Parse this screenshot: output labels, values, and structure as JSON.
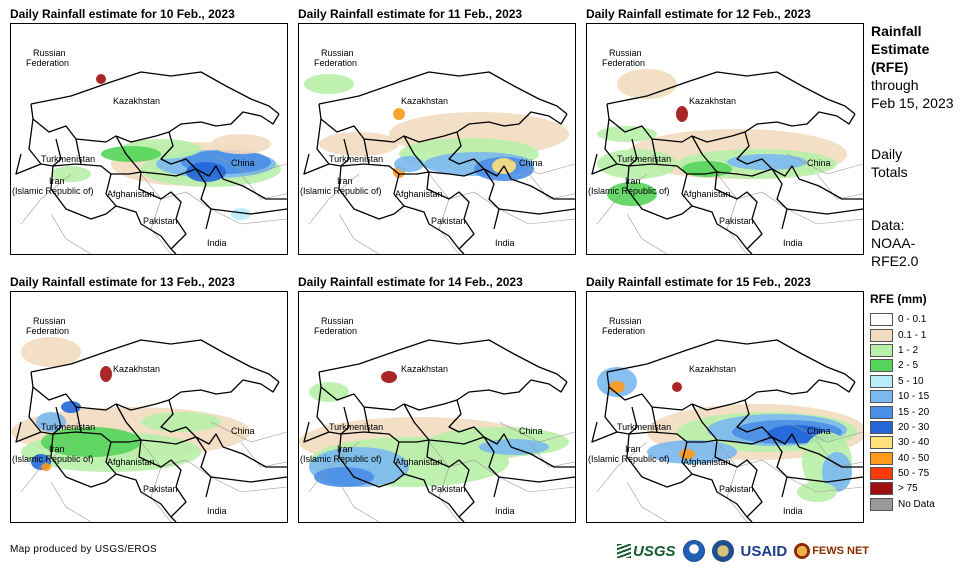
{
  "panels": [
    {
      "title": "Daily Rainfall estimate for 10 Feb., 2023"
    },
    {
      "title": "Daily Rainfall estimate for 11 Feb., 2023"
    },
    {
      "title": "Daily Rainfall estimate for 12 Feb., 2023"
    },
    {
      "title": "Daily Rainfall estimate for 13 Feb., 2023"
    },
    {
      "title": "Daily Rainfall estimate for 14 Feb., 2023"
    },
    {
      "title": "Daily Rainfall estimate for 15 Feb., 2023"
    }
  ],
  "country_labels": {
    "russia_line1": "Russian",
    "russia_line2": "Federation",
    "kazakhstan": "Kazakhstan",
    "turkmenistan": "Turkmenistan",
    "iran_line1": "Iran",
    "iran_line2": "(Islamic Republic of)",
    "afghanistan": "Afghanistan",
    "pakistan": "Pakistan",
    "china": "China",
    "india": "India"
  },
  "sidebar": {
    "rfe_title_line1": "Rainfall",
    "rfe_title_line2": "Estimate",
    "rfe_title_line3": "(RFE)",
    "through": "through",
    "through_date": "Feb 15, 2023",
    "totals_line1": "Daily",
    "totals_line2": "Totals",
    "data_line1": "Data:",
    "data_line2": "NOAA-",
    "data_line3": "RFE2.0"
  },
  "legend": {
    "title": "RFE (mm)",
    "items": [
      {
        "label": "0 - 0.1",
        "color": "#ffffff"
      },
      {
        "label": "0.1 - 1",
        "color": "#f2dcc0"
      },
      {
        "label": "1 - 2",
        "color": "#b8f0a8"
      },
      {
        "label": "2 - 5",
        "color": "#55d45a"
      },
      {
        "label": "5 - 10",
        "color": "#b8ecf8"
      },
      {
        "label": "10 - 15",
        "color": "#7ab8f0"
      },
      {
        "label": "15 - 20",
        "color": "#4a8ee6"
      },
      {
        "label": "20 - 30",
        "color": "#2266d8"
      },
      {
        "label": "30 - 40",
        "color": "#ffe07a"
      },
      {
        "label": "40 - 50",
        "color": "#ff9a1a"
      },
      {
        "label": "50 - 75",
        "color": "#ff3a0a"
      },
      {
        "label": "> 75",
        "color": "#a01010"
      },
      {
        "label": "No Data",
        "color": "#999999"
      }
    ]
  },
  "footer": {
    "credit": "Map produced by USGS/EROS"
  },
  "logos": {
    "usgs": "USGS",
    "usaid": "USAID",
    "fews": "FEWS NET"
  }
}
